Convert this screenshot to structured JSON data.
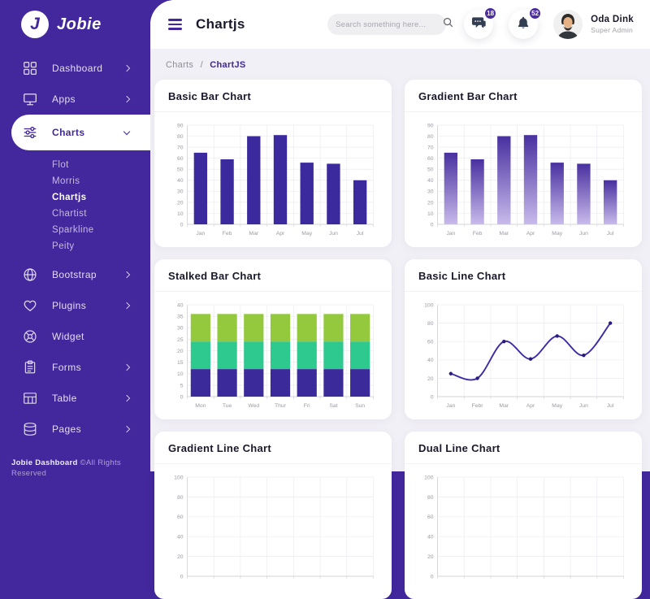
{
  "brand": {
    "name": "Jobie",
    "initial": "J"
  },
  "header": {
    "title": "Chartjs",
    "search_placeholder": "Search something here...",
    "messages_count": "18",
    "notifications_count": "52",
    "user": {
      "name": "Oda Dink",
      "role": "Super Admin"
    }
  },
  "breadcrumb": {
    "parent": "Charts",
    "separator": "/",
    "current": "ChartJS"
  },
  "sidebar": {
    "items": [
      {
        "label": "Dashboard",
        "icon": "grid-icon",
        "chevron": "right"
      },
      {
        "label": "Apps",
        "icon": "monitor-icon",
        "chevron": "right"
      },
      {
        "label": "Charts",
        "icon": "sliders-icon",
        "chevron": "down",
        "active": true,
        "children": [
          {
            "label": "Flot"
          },
          {
            "label": "Morris"
          },
          {
            "label": "Chartjs",
            "active": true
          },
          {
            "label": "Chartist"
          },
          {
            "label": "Sparkline"
          },
          {
            "label": "Peity"
          }
        ]
      },
      {
        "label": "Bootstrap",
        "icon": "globe-icon",
        "chevron": "right"
      },
      {
        "label": "Plugins",
        "icon": "heart-icon",
        "chevron": "right"
      },
      {
        "label": "Widget",
        "icon": "badge-icon",
        "chevron": null
      },
      {
        "label": "Forms",
        "icon": "clipboard-icon",
        "chevron": "right"
      },
      {
        "label": "Table",
        "icon": "table-icon",
        "chevron": "right"
      },
      {
        "label": "Pages",
        "icon": "layers-icon",
        "chevron": "right"
      }
    ],
    "footer_brand": "Jobie Dashboard",
    "footer_text": " ©All Rights Reserved"
  },
  "colors": {
    "sidebar_purple": "#42279d",
    "accent_purple": "#3e2797",
    "badge_purple": "#4b2ba0",
    "content_bg": "#f1f0f6",
    "bar_purple": "#3b2a9d",
    "stack_colors": [
      "#3a2a9a",
      "#2dc98e",
      "#94c93d"
    ],
    "line_purple": "#3d2ba5"
  },
  "chart_data": [
    {
      "type": "bar",
      "title": "Basic Bar Chart",
      "categories": [
        "Jan",
        "Feb",
        "Mar",
        "Apr",
        "May",
        "Jun",
        "Jul"
      ],
      "values": [
        65,
        59,
        80,
        81,
        56,
        55,
        40
      ],
      "ylim": [
        0,
        90
      ],
      "ytick_step": 10,
      "bar_color": "#3b2a9d",
      "grid": true,
      "legend": false
    },
    {
      "type": "bar",
      "title": "Gradient Bar Chart",
      "categories": [
        "Jan",
        "Feb",
        "Mar",
        "Apr",
        "May",
        "Jun",
        "Jul"
      ],
      "values": [
        65,
        59,
        80,
        81,
        56,
        55,
        40
      ],
      "ylim": [
        0,
        90
      ],
      "ytick_step": 10,
      "gradient": [
        "#48309f",
        "#c8baeb"
      ],
      "grid": true,
      "legend": false
    },
    {
      "type": "stacked-bar",
      "title": "Stalked Bar Chart",
      "categories": [
        "Mon",
        "Tue",
        "Wed",
        "Thur",
        "Fri",
        "Sat",
        "Sun"
      ],
      "series": [
        {
          "name": "bottom",
          "color": "#3a2a9a",
          "values": [
            12,
            12,
            12,
            12,
            12,
            12,
            12
          ]
        },
        {
          "name": "middle",
          "color": "#2dc98e",
          "values": [
            12,
            12,
            12,
            12,
            12,
            12,
            12
          ]
        },
        {
          "name": "top",
          "color": "#94c93d",
          "values": [
            12,
            12,
            12,
            12,
            12,
            12,
            12
          ]
        }
      ],
      "ylim": [
        0,
        40
      ],
      "ytick_step": 5,
      "grid": true,
      "legend": false
    },
    {
      "type": "line",
      "title": "Basic Line Chart",
      "categories": [
        "Jan",
        "Febr",
        "Mar",
        "Apr",
        "May",
        "Jun",
        "Jul"
      ],
      "values": [
        25,
        20,
        60,
        41,
        66,
        45,
        80
      ],
      "ylim": [
        0,
        100
      ],
      "ytick_step": 20,
      "line_color": "#3d2ba5",
      "point_color": "#2a1b7e",
      "grid": true,
      "legend": false
    },
    {
      "type": "line",
      "title": "Gradient Line Chart",
      "partial": true,
      "categories": [],
      "values": [],
      "ylim": [
        0,
        100
      ],
      "ytick_step": 20,
      "grid": true
    },
    {
      "type": "line",
      "title": "Dual Line Chart",
      "partial": true,
      "categories": [],
      "values": [],
      "ylim": [
        0,
        100
      ],
      "ytick_step": 20,
      "grid": true
    }
  ]
}
